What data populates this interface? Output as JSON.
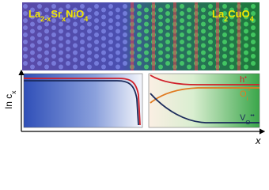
{
  "top_image": {
    "left_label": [
      {
        "text": "La"
      },
      {
        "text": "2-x",
        "sub": true
      },
      {
        "text": "Sr"
      },
      {
        "text": "x",
        "sub": true
      },
      {
        "text": "NiO"
      },
      {
        "text": "4",
        "sub": true
      }
    ],
    "right_label": [
      {
        "text": "La"
      },
      {
        "text": "2",
        "sub": true
      },
      {
        "text": "CuO"
      },
      {
        "text": "4",
        "sub": true
      }
    ]
  },
  "plot": {
    "y_label": [
      {
        "text": "ln c"
      },
      {
        "text": "x",
        "sub": true
      }
    ],
    "x_label": "x",
    "species": [
      {
        "parts": [
          {
            "text": "h"
          },
          {
            "text": "•",
            "sup": true
          }
        ],
        "color": "#d0202a"
      },
      {
        "parts": [
          {
            "text": "O"
          },
          {
            "text": "i",
            "sub": true
          },
          {
            "text": "″",
            "sup": true
          }
        ],
        "color": "#e07a20"
      },
      {
        "parts": [
          {
            "text": "V"
          },
          {
            "text": "O",
            "sub": true
          },
          {
            "text": "••",
            "sup": true
          }
        ],
        "color": "#1a2a5a"
      }
    ]
  }
}
